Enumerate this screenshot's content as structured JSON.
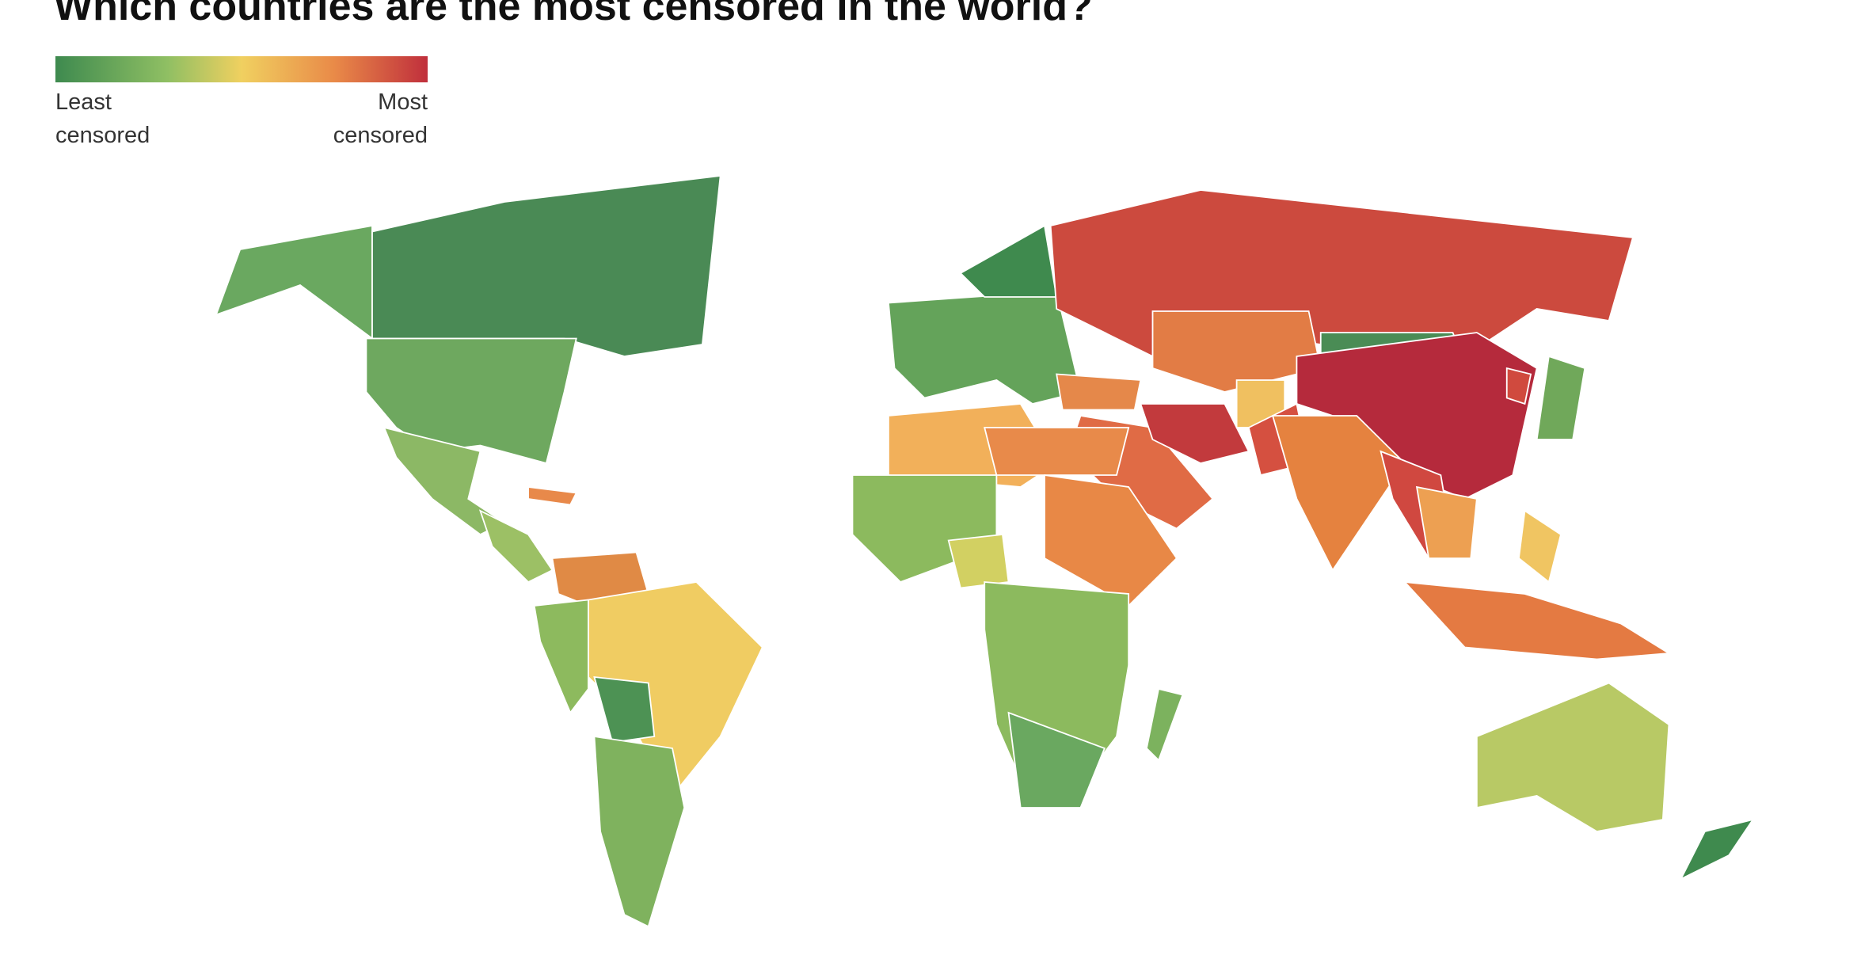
{
  "header": {
    "title": "Which countries are the most censored in the world?"
  },
  "legend": {
    "low_label": "Least censored",
    "high_label": "Most censored"
  }
}
